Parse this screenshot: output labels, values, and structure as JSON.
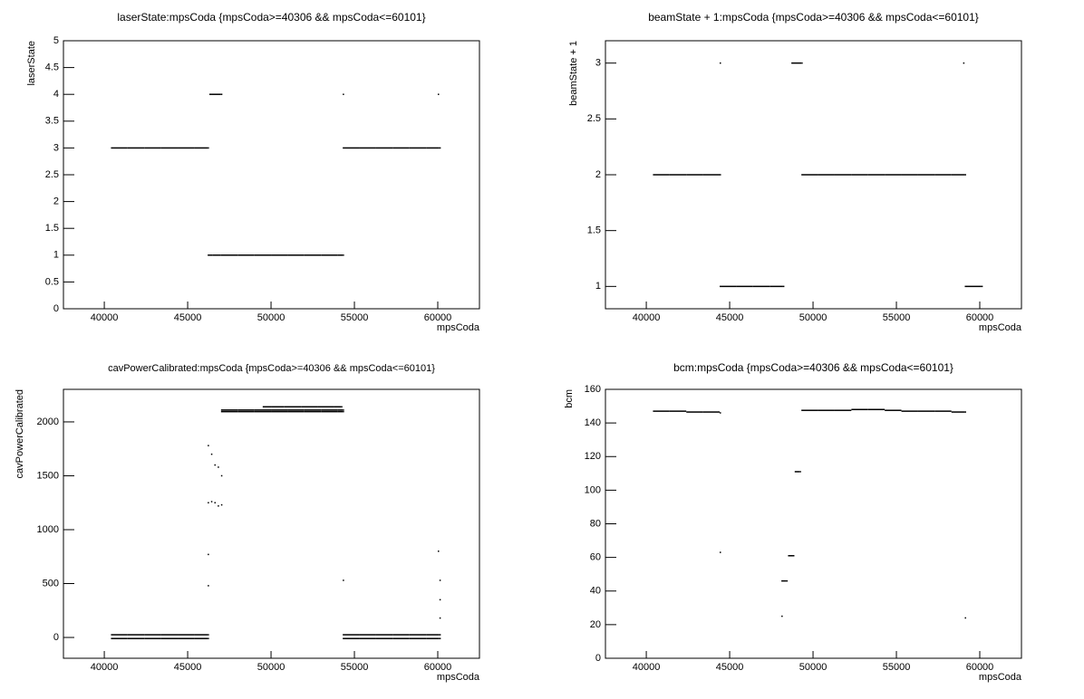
{
  "chart_data": [
    {
      "type": "scatter",
      "title": "laserState:mpsCoda {mpsCoda>=40306 && mpsCoda<=60101}",
      "xlabel": "mpsCoda",
      "ylabel": "laserState",
      "color": "#000000",
      "xlim": [
        37550,
        62500
      ],
      "ylim": [
        0,
        5
      ],
      "xticks": [
        40000,
        45000,
        50000,
        55000,
        60000
      ],
      "yticks": [
        0,
        0.5,
        1,
        1.5,
        2,
        2.5,
        3,
        3.5,
        4,
        4.5,
        5
      ],
      "x": [
        40400,
        41400,
        42400,
        43400,
        44400,
        45400,
        46200,
        46300,
        47000,
        46200,
        46500,
        47000,
        48000,
        49000,
        50000,
        51000,
        52000,
        53000,
        54000,
        54300,
        54300,
        54300,
        55300,
        56300,
        57300,
        58300,
        59300,
        60100,
        60000
      ],
      "values": [
        3,
        3,
        3,
        3,
        3,
        3,
        3,
        4,
        4,
        1,
        1,
        1,
        1,
        1,
        1,
        1,
        1,
        1,
        1,
        1,
        4,
        3,
        3,
        3,
        3,
        3,
        3,
        3,
        4
      ]
    },
    {
      "type": "scatter",
      "title": "beamState + 1:mpsCoda {mpsCoda>=40306 && mpsCoda<=60101}",
      "xlabel": "mpsCoda",
      "ylabel": "beamState + 1",
      "color": "#000000",
      "xlim": [
        37550,
        62500
      ],
      "ylim": [
        0.8,
        3.2
      ],
      "xticks": [
        40000,
        45000,
        50000,
        55000,
        60000
      ],
      "yticks": [
        1,
        1.5,
        2,
        2.5,
        3
      ],
      "x": [
        40400,
        41400,
        42400,
        43400,
        44400,
        44400,
        44400,
        45400,
        46400,
        47400,
        48200,
        48700,
        49300,
        49300,
        50300,
        51300,
        52300,
        53300,
        54300,
        55300,
        56300,
        57300,
        58300,
        59100,
        59000,
        59100,
        60100
      ],
      "values": [
        2,
        2,
        2,
        2,
        2,
        3,
        1,
        1,
        1,
        1,
        1,
        3,
        3,
        2,
        2,
        2,
        2,
        2,
        2,
        2,
        2,
        2,
        2,
        2,
        3,
        1,
        1
      ]
    },
    {
      "type": "scatter",
      "title": "cavPowerCalibrated:mpsCoda {mpsCoda>=40306 && mpsCoda<=60101}",
      "xlabel": "mpsCoda",
      "ylabel": "cavPowerCalibrated",
      "color": "#000000",
      "xlim": [
        37550,
        62500
      ],
      "ylim": [
        -193,
        2302
      ],
      "xticks": [
        40000,
        45000,
        50000,
        55000,
        60000
      ],
      "yticks": [
        0,
        500,
        1000,
        1500,
        2000
      ],
      "x": [
        40400,
        41400,
        42400,
        43400,
        44400,
        45400,
        46200,
        40400,
        41400,
        42400,
        43400,
        44400,
        45400,
        46200,
        46200,
        46200,
        46400,
        46400,
        46600,
        46600,
        46800,
        46800,
        47000,
        47000,
        47000,
        48000,
        49000,
        50000,
        51000,
        52000,
        53000,
        54000,
        54300,
        47000,
        48000,
        49000,
        50000,
        51000,
        52000,
        53000,
        54000,
        54300,
        49500,
        50000,
        50800,
        51800,
        52800,
        53800,
        54200,
        54300,
        55300,
        56300,
        57300,
        58300,
        59300,
        60100,
        54300,
        55300,
        56300,
        57300,
        58300,
        59300,
        60100,
        46200,
        46200,
        54300,
        60000,
        60100,
        60100,
        60100
      ],
      "values": [
        25,
        25,
        25,
        25,
        25,
        25,
        25,
        -10,
        -10,
        -10,
        -10,
        -10,
        -10,
        -10,
        1780,
        1250,
        1700,
        1260,
        1600,
        1250,
        1580,
        1220,
        1500,
        1230,
        2110,
        2110,
        2110,
        2110,
        2110,
        2110,
        2110,
        2110,
        2110,
        2095,
        2095,
        2095,
        2095,
        2095,
        2095,
        2095,
        2095,
        2095,
        2140,
        2140,
        2140,
        2140,
        2140,
        2140,
        2140,
        25,
        25,
        25,
        25,
        25,
        25,
        25,
        -10,
        -10,
        -10,
        -10,
        -10,
        -10,
        -10,
        770,
        480,
        530,
        800,
        530,
        350,
        180
      ]
    },
    {
      "type": "scatter",
      "title": "bcm:mpsCoda {mpsCoda>=40306 && mpsCoda<=60101}",
      "xlabel": "mpsCoda",
      "ylabel": "bcm",
      "color": "#000000",
      "xlim": [
        37550,
        62500
      ],
      "ylim": [
        0,
        160
      ],
      "xticks": [
        40000,
        45000,
        50000,
        55000,
        60000
      ],
      "yticks": [
        0,
        20,
        40,
        60,
        80,
        100,
        120,
        140,
        160
      ],
      "x": [
        40400,
        41400,
        42400,
        43400,
        44400,
        44400,
        48100,
        48100,
        48400,
        48500,
        48800,
        48900,
        49200,
        49300,
        50300,
        51300,
        52300,
        53300,
        54300,
        55300,
        56300,
        57300,
        58300,
        59100,
        59100
      ],
      "values": [
        147,
        147,
        146.5,
        146.5,
        146,
        63,
        25,
        46,
        46,
        61,
        61,
        111,
        111,
        147.5,
        147.5,
        147.5,
        148,
        148,
        147.5,
        147,
        147,
        147,
        146.5,
        146.5,
        24
      ]
    }
  ]
}
